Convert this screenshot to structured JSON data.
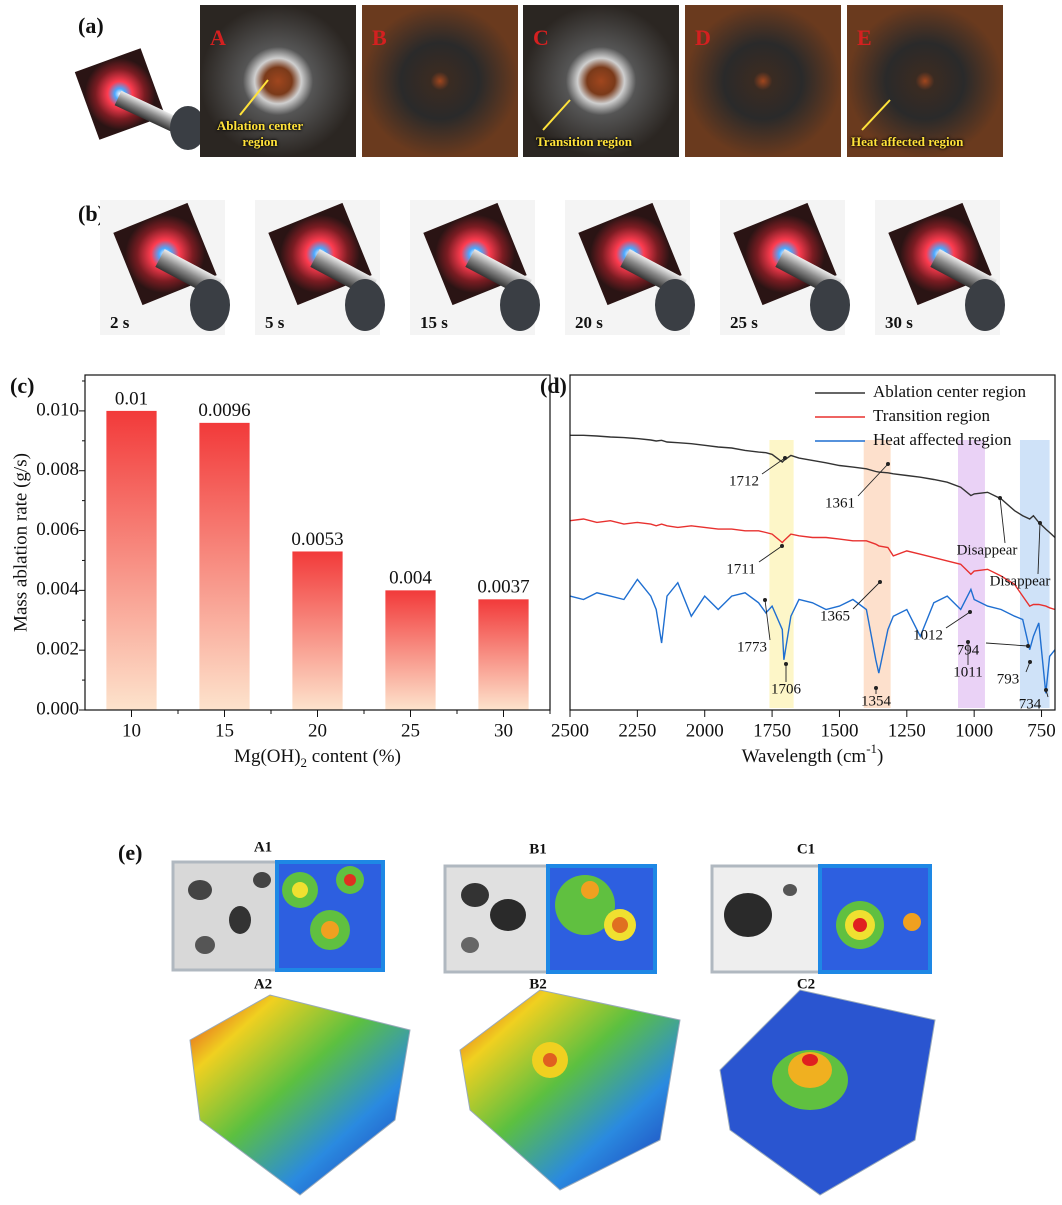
{
  "panel_labels": [
    "(a)",
    "(b)",
    "(c)",
    "(d)",
    "(e)"
  ],
  "panel_a": {
    "letters": [
      "A",
      "B",
      "C",
      "D",
      "E"
    ],
    "regions": [
      "Ablation center region",
      "Transition region",
      "Heat affected region"
    ]
  },
  "panel_b": {
    "times": [
      "2 s",
      "5 s",
      "15 s",
      "20 s",
      "25 s",
      "30 s"
    ]
  },
  "panel_e": {
    "labels": [
      "A1",
      "B1",
      "C1",
      "A2",
      "B2",
      "C2"
    ]
  },
  "chart_data": [
    {
      "type": "bar",
      "ylabel": "Mass ablation rate (g/s)",
      "xlabel": {
        "main": "Mg(OH)",
        "sub": "2",
        "rest": " content (%)"
      },
      "categories": [
        10,
        15,
        20,
        25,
        30
      ],
      "values": [
        0.01,
        0.0096,
        0.0053,
        0.004,
        0.0037
      ],
      "color": "#f23a3a",
      "ylim": [
        0,
        0.0112
      ],
      "yticks": [
        {
          "value": 0,
          "label": "0.000"
        },
        {
          "value": 0.002,
          "label": "0.002"
        },
        {
          "value": 0.004,
          "label": "0.004"
        },
        {
          "value": 0.006,
          "label": "0.006"
        },
        {
          "value": 0.008,
          "label": "0.008"
        },
        {
          "value": 0.01,
          "label": "0.010"
        }
      ]
    },
    {
      "type": "line",
      "xlabel": {
        "main": "Wavelength (cm",
        "sup": "-1",
        "rest": ")"
      },
      "xlim": [
        2500,
        700
      ],
      "ylim": [
        0,
        100
      ],
      "xticks": [
        2500,
        2250,
        2000,
        1750,
        1500,
        1250,
        1000,
        750
      ],
      "legend": "upper right",
      "x": [
        2500,
        2450,
        2400,
        2350,
        2300,
        2250,
        2200,
        2180,
        2160,
        2140,
        2100,
        2050,
        2000,
        1950,
        1900,
        1850,
        1800,
        1773,
        1750,
        1712,
        1706,
        1680,
        1650,
        1600,
        1550,
        1500,
        1450,
        1400,
        1365,
        1354,
        1320,
        1300,
        1250,
        1200,
        1150,
        1100,
        1050,
        1012,
        1000,
        950,
        900,
        850,
        820,
        794,
        780,
        760,
        734,
        720,
        700
      ],
      "series": [
        {
          "name": "Ablation center region",
          "color": "#333333",
          "values": [
            82,
            82,
            81.8,
            81.5,
            81.3,
            81,
            80.6,
            80.3,
            80.5,
            80,
            79.8,
            79.5,
            79,
            78.5,
            78.2,
            77.5,
            77,
            76.8,
            76.3,
            74,
            74.5,
            76,
            75.2,
            74.5,
            73.8,
            73,
            72.5,
            72,
            71.2,
            71,
            70.8,
            70.5,
            70,
            69.5,
            68.8,
            68,
            66.5,
            64,
            64.5,
            65,
            63,
            59.5,
            58,
            57,
            58,
            56,
            54,
            53,
            51.5
          ]
        },
        {
          "name": "Transition region",
          "color": "#e8312f",
          "values": [
            56.5,
            57,
            56,
            56.5,
            55.5,
            56,
            55.5,
            55,
            55.5,
            55,
            54.5,
            55,
            54.5,
            54,
            54,
            53.5,
            53.5,
            53,
            52.5,
            50,
            50.5,
            52.5,
            52,
            51.5,
            51.5,
            51,
            50.5,
            50.5,
            49.5,
            49,
            48.5,
            46,
            47.5,
            46.5,
            45.5,
            44.5,
            43.5,
            40.5,
            41.5,
            42,
            40,
            37.5,
            34,
            31,
            31.5,
            31.5,
            31,
            30.5,
            30
          ]
        },
        {
          "name": "Heat affected region",
          "color": "#1f6fd1",
          "values": [
            34,
            33,
            35,
            34,
            33,
            39,
            34,
            30,
            20,
            34,
            38,
            28,
            34,
            30,
            34,
            35,
            32,
            29,
            31,
            24,
            15,
            28,
            33,
            32,
            30,
            31,
            33,
            30,
            15,
            11,
            24,
            28,
            30,
            22,
            32,
            34,
            30,
            36,
            33,
            31,
            30,
            28,
            27,
            18,
            22,
            26,
            5,
            16,
            18
          ]
        }
      ],
      "annotations": [
        "1712",
        "1361",
        "Disappear",
        "Disappear",
        "1711",
        "1365",
        "1012",
        "794",
        "1773",
        "1706",
        "1354",
        "1011",
        "793",
        "734"
      ]
    }
  ]
}
